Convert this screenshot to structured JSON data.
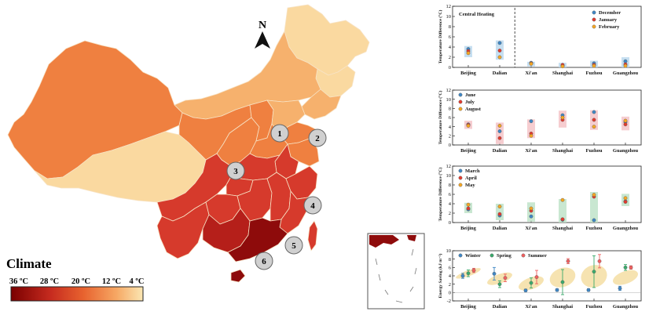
{
  "map": {
    "north_label": "N",
    "legend_title": "Climate",
    "legend_ticks": [
      "36 ºC",
      "28 ºC",
      "20 ºC",
      "12 ºC",
      "4 ºC"
    ],
    "colors": {
      "hot": "#8e0b0b",
      "warm_red": "#d63a2c",
      "orange": "#ef8040",
      "light_orange": "#f6b16d",
      "pale": "#fad9a0"
    },
    "city_markers": [
      "1",
      "2",
      "3",
      "4",
      "5",
      "6"
    ]
  },
  "charts": [
    {
      "id": "winter",
      "type": "scatter",
      "ylabel": "Temperature Difference (°C)",
      "ylim": [
        0,
        12
      ],
      "yticks": [
        "0",
        "2",
        "4",
        "6",
        "8",
        "10",
        "12"
      ],
      "categories": [
        "Beijing",
        "Dalian",
        "Xi'an",
        "Shanghai",
        "Fuzhou",
        "Guangzhou"
      ],
      "annotation": "Central Heating",
      "legend": [
        "December",
        "January",
        "February"
      ],
      "band_color": "#bcd9ee",
      "series_colors": [
        "#3f87c5",
        "#e23a2e",
        "#f5a623"
      ],
      "points": [
        [
          3.6,
          3.2,
          2.8
        ],
        [
          4.8,
          3.3,
          2.0
        ],
        [
          0.9,
          0.8,
          0.7
        ],
        [
          0.3,
          0.5,
          0.2
        ],
        [
          0.8,
          0.5,
          0.3
        ],
        [
          1.2,
          0.6,
          0.3
        ]
      ],
      "bands": [
        [
          2.0,
          4.2
        ],
        [
          1.5,
          5.3
        ],
        [
          0.2,
          1.1
        ],
        [
          0.0,
          0.9
        ],
        [
          0.0,
          1.3
        ],
        [
          0.0,
          2.0
        ]
      ]
    },
    {
      "id": "summer",
      "type": "scatter",
      "ylabel": "Temperature Difference (°C)",
      "ylim": [
        0,
        12
      ],
      "yticks": [
        "0",
        "2",
        "4",
        "6",
        "8",
        "10",
        "12"
      ],
      "categories": [
        "Beijing",
        "Dalian",
        "Xi'an",
        "Shanghai",
        "Fuzhou",
        "Guangzhou"
      ],
      "legend": [
        "June",
        "July",
        "August"
      ],
      "band_color": "#f5c4c8",
      "series_colors": [
        "#3f87c5",
        "#e23a2e",
        "#f5a623"
      ],
      "points": [
        [
          4.5,
          4.4,
          4.2
        ],
        [
          3.0,
          1.5,
          4.2
        ],
        [
          5.2,
          2.5,
          2.0
        ],
        [
          6.5,
          5.5,
          6.0
        ],
        [
          7.2,
          5.5,
          4.0
        ],
        [
          5.0,
          4.5,
          5.3
        ]
      ],
      "bands": [
        [
          3.5,
          5.3
        ],
        [
          0.2,
          4.9
        ],
        [
          1.5,
          5.6
        ],
        [
          3.8,
          7.5
        ],
        [
          3.3,
          7.6
        ],
        [
          3.2,
          6.2
        ]
      ]
    },
    {
      "id": "spring",
      "type": "scatter",
      "ylabel": "Temperature Difference (°C)",
      "ylim": [
        0,
        12
      ],
      "yticks": [
        "0",
        "2",
        "4",
        "6",
        "8",
        "10",
        "12"
      ],
      "categories": [
        "Beijing",
        "Dalian",
        "Xi'an",
        "Shanghai",
        "Fuzhou",
        "Guangzhou"
      ],
      "legend": [
        "March",
        "April",
        "May"
      ],
      "band_color": "#bfe3c9",
      "series_colors": [
        "#3f87c5",
        "#e23a2e",
        "#f5a623"
      ],
      "points": [
        [
          2.8,
          3.0,
          3.8
        ],
        [
          1.5,
          1.8,
          3.4
        ],
        [
          1.3,
          2.5,
          3.0
        ],
        [
          0.6,
          0.7,
          4.8
        ],
        [
          0.5,
          5.5,
          5.9
        ],
        [
          4.5,
          4.4,
          5.2
        ]
      ],
      "bands": [
        [
          2.0,
          4.2
        ],
        [
          0.5,
          4.0
        ],
        [
          0.2,
          4.3
        ],
        [
          0.0,
          5.0
        ],
        [
          0.0,
          6.5
        ],
        [
          3.5,
          6.1
        ]
      ]
    },
    {
      "id": "energy",
      "type": "scatter",
      "ylabel": "Energy Saving (kJ m⁻²)",
      "ylim": [
        -2,
        10
      ],
      "yticks": [
        "-2",
        "0",
        "2",
        "4",
        "6",
        "8",
        "10"
      ],
      "categories": [
        "Beijing",
        "Dalian",
        "Xi'an",
        "Shanghai",
        "Fuzhou",
        "Guangzhou"
      ],
      "legend": [
        "Winter",
        "Spring",
        "Summer"
      ],
      "band_color": "#f5e0a8",
      "series_colors": [
        "#3f87c5",
        "#3aaa6c",
        "#f06060"
      ],
      "points": [
        [
          4.0,
          4.6,
          5.3
        ],
        [
          4.5,
          2.0,
          3.5
        ],
        [
          0.5,
          2.3,
          3.7
        ],
        [
          0.6,
          2.5,
          7.5
        ],
        [
          0.6,
          5.0,
          7.5
        ],
        [
          1.0,
          6.0,
          6.0
        ]
      ],
      "errors": [
        [
          0.6,
          0.8,
          0.5
        ],
        [
          1.5,
          0.8,
          0.9
        ],
        [
          0.3,
          1.2,
          1.6
        ],
        [
          0.3,
          3.0,
          0.6
        ],
        [
          0.3,
          3.8,
          1.6
        ],
        [
          0.5,
          0.7,
          0.4
        ]
      ],
      "ellipses": [
        [
          4.6,
          1.4
        ],
        [
          3.3,
          2.2
        ],
        [
          2.2,
          2.8
        ],
        [
          3.6,
          4.5
        ],
        [
          3.9,
          5.3
        ],
        [
          3.6,
          3.0
        ]
      ]
    }
  ]
}
